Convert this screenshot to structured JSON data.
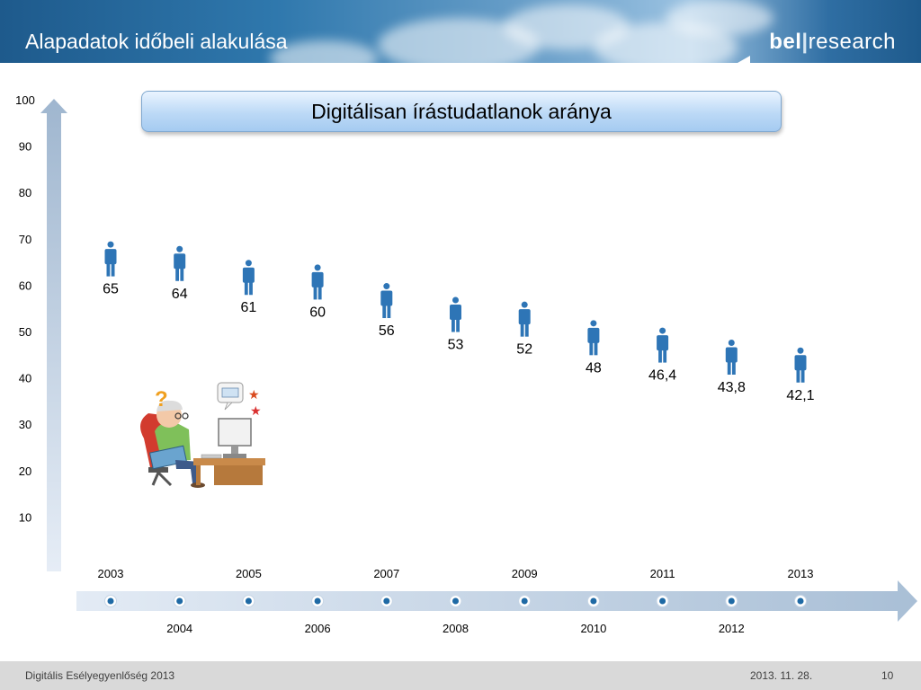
{
  "header": {
    "title": "Alapadatok időbeli alakulása",
    "logo_left": "bel",
    "logo_sep": "|",
    "logo_right": "research"
  },
  "footer": {
    "left": "Digitális Esélyegyenlőség 2013",
    "date": "2013. 11. 28.",
    "page": "10"
  },
  "colors": {
    "header_blue": "#1e5a8c",
    "person": "#2e75b6",
    "axis": "#b8c9dc",
    "dot": "#1f6aa5"
  },
  "icons": {
    "person": "person-icon",
    "illustration": "confused-old-man-at-computer"
  },
  "chart_data": {
    "type": "scatter",
    "title": "Digitálisan írástudatlanok aránya",
    "x": [
      "2003",
      "2004",
      "2005",
      "2006",
      "2007",
      "2008",
      "2009",
      "2010",
      "2011",
      "2012",
      "2013"
    ],
    "values": [
      65,
      64,
      61,
      60,
      56,
      53,
      52,
      48,
      46.4,
      43.8,
      42.1
    ],
    "value_labels": [
      "65",
      "64",
      "61",
      "60",
      "56",
      "53",
      "52",
      "48",
      "46,4",
      "43,8",
      "42,1"
    ],
    "y_ticks": [
      "10",
      "20",
      "30",
      "40",
      "50",
      "60",
      "70",
      "80",
      "90",
      "100"
    ],
    "ylim": [
      0,
      100
    ],
    "marker": "person-icon",
    "grid": false,
    "legend": "none"
  }
}
